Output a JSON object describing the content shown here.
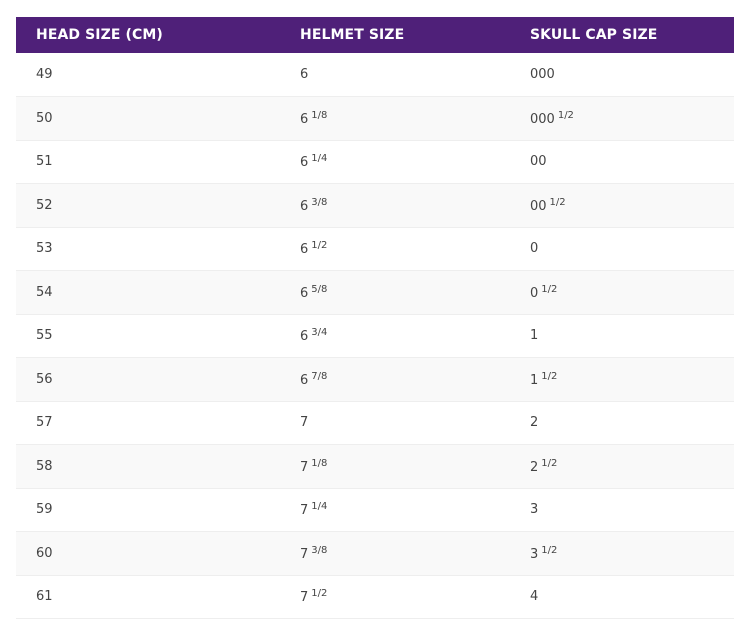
{
  "table": {
    "headers": [
      "HEAD SIZE (CM)",
      "HELMET SIZE",
      "SKULL CAP SIZE"
    ],
    "rows": [
      {
        "head": "49",
        "helmet": "6",
        "helmet_frac": "",
        "skull": "000",
        "skull_frac": ""
      },
      {
        "head": "50",
        "helmet": "6",
        "helmet_frac": "1/8",
        "skull": "000",
        "skull_frac": "1/2"
      },
      {
        "head": "51",
        "helmet": "6",
        "helmet_frac": "1/4",
        "skull": "00",
        "skull_frac": ""
      },
      {
        "head": "52",
        "helmet": "6",
        "helmet_frac": "3/8",
        "skull": "00",
        "skull_frac": "1/2"
      },
      {
        "head": "53",
        "helmet": "6",
        "helmet_frac": "1/2",
        "skull": "0",
        "skull_frac": ""
      },
      {
        "head": "54",
        "helmet": "6",
        "helmet_frac": "5/8",
        "skull": "0",
        "skull_frac": "1/2"
      },
      {
        "head": "55",
        "helmet": "6",
        "helmet_frac": "3/4",
        "skull": "1",
        "skull_frac": ""
      },
      {
        "head": "56",
        "helmet": "6",
        "helmet_frac": "7/8",
        "skull": "1",
        "skull_frac": "1/2"
      },
      {
        "head": "57",
        "helmet": "7",
        "helmet_frac": "",
        "skull": "2",
        "skull_frac": ""
      },
      {
        "head": "58",
        "helmet": "7",
        "helmet_frac": "1/8",
        "skull": "2",
        "skull_frac": "1/2"
      },
      {
        "head": "59",
        "helmet": "7",
        "helmet_frac": "1/4",
        "skull": "3",
        "skull_frac": ""
      },
      {
        "head": "60",
        "helmet": "7",
        "helmet_frac": "3/8",
        "skull": "3",
        "skull_frac": "1/2"
      },
      {
        "head": "61",
        "helmet": "7",
        "helmet_frac": "1/2",
        "skull": "4",
        "skull_frac": ""
      }
    ]
  },
  "colors": {
    "header_bg": "#4f2079",
    "header_text": "#ffffff",
    "cell_text": "#444444",
    "row_alt_bg": "#f9f9f9",
    "row_border": "#eeeeee"
  }
}
